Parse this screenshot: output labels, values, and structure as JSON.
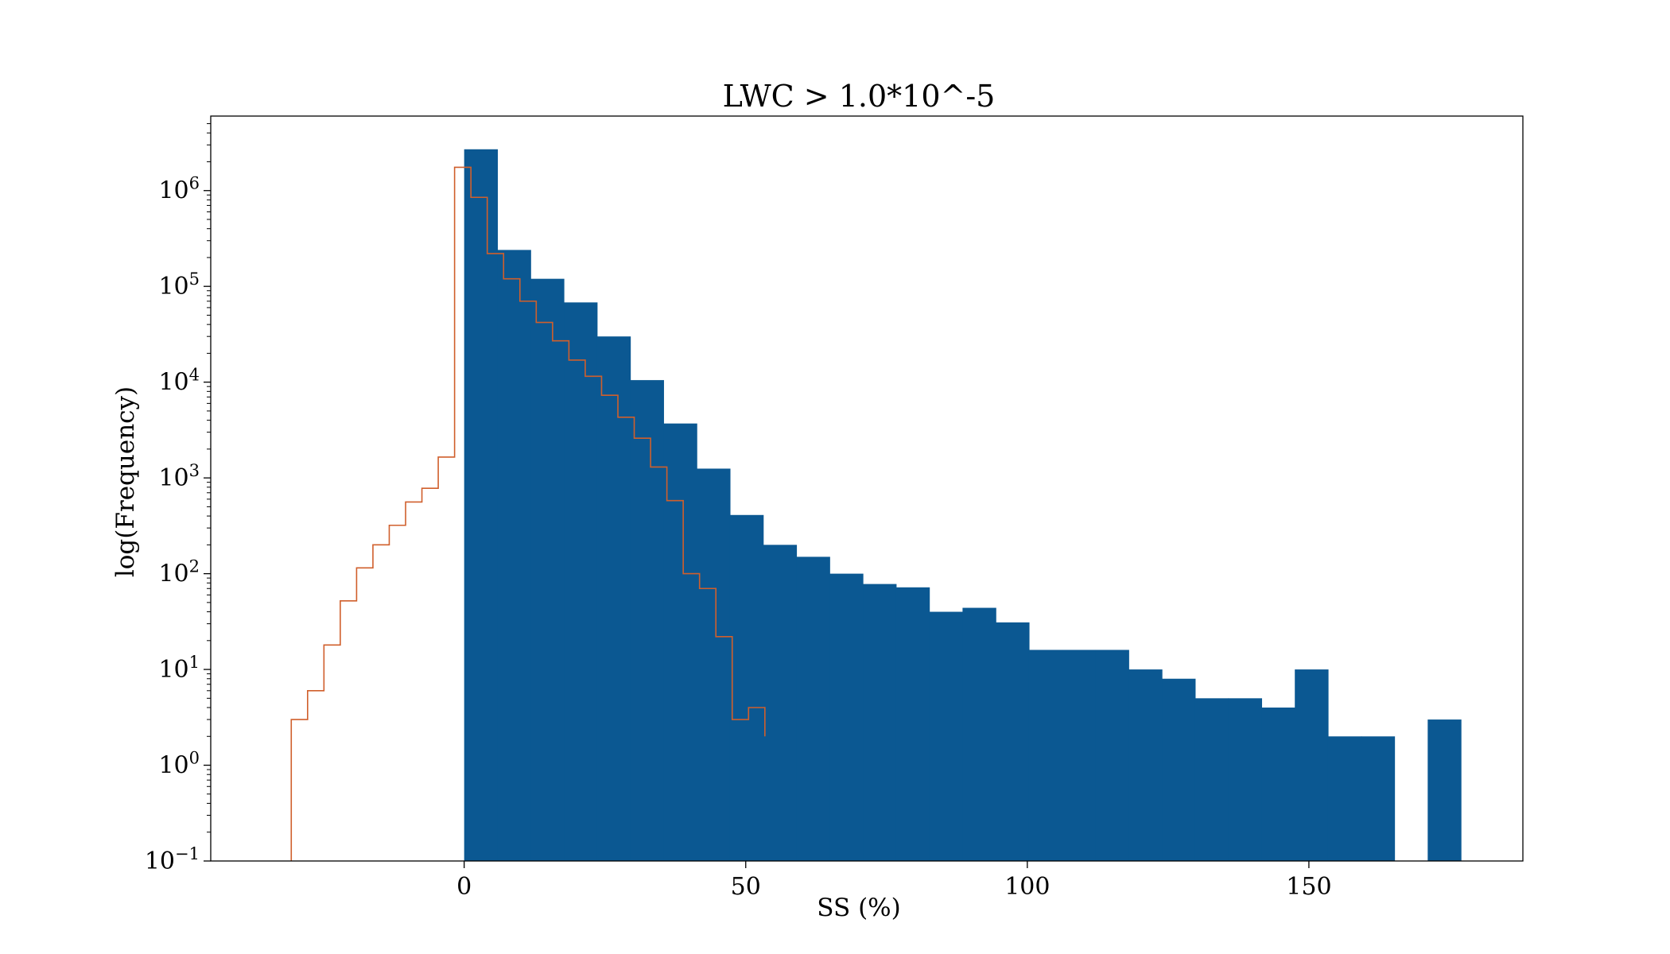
{
  "chart_data": {
    "type": "histogram",
    "title": "LWC > 1.0*10^-5",
    "xlabel": "SS (%)",
    "ylabel": "log(Frequency)",
    "xlim": [
      -45,
      188
    ],
    "ylim": [
      0.1,
      6000000
    ],
    "yscale": "log",
    "grid": false,
    "x_ticks": [
      {
        "value": 0,
        "label": "0"
      },
      {
        "value": 50,
        "label": "50"
      },
      {
        "value": 100,
        "label": "100"
      },
      {
        "value": 150,
        "label": "150"
      }
    ],
    "y_ticks": [
      {
        "value": 0.1,
        "base": "10",
        "exp": "−1"
      },
      {
        "value": 1,
        "base": "10",
        "exp": "0"
      },
      {
        "value": 10,
        "base": "10",
        "exp": "1"
      },
      {
        "value": 100,
        "base": "10",
        "exp": "2"
      },
      {
        "value": 1000,
        "base": "10",
        "exp": "3"
      },
      {
        "value": 10000,
        "base": "10",
        "exp": "4"
      },
      {
        "value": 100000,
        "base": "10",
        "exp": "5"
      },
      {
        "value": 1000000,
        "base": "10",
        "exp": "6"
      }
    ],
    "series": [
      {
        "style": "filled-bars",
        "color": "#0b5892",
        "bin_edges": [
          0,
          5.9,
          11.8,
          17.7,
          23.6,
          29.5,
          35.4,
          41.3,
          47.2,
          53.1,
          59.0,
          64.9,
          70.8,
          76.7,
          82.6,
          88.5,
          94.4,
          100.3,
          106.2,
          112.1,
          118.0,
          123.9,
          129.8,
          135.7,
          141.6,
          147.5,
          153.4,
          159.3,
          165.2,
          171.1,
          177.0
        ],
        "values": [
          2700000,
          240000,
          120000,
          68000,
          30000,
          10500,
          3700,
          1250,
          410,
          200,
          150,
          100,
          78,
          72,
          40,
          44,
          31,
          16,
          16,
          16,
          10,
          8,
          5,
          5,
          4,
          10,
          2,
          2,
          0,
          3
        ]
      },
      {
        "style": "step",
        "color": "#d05f2c",
        "bin_edges": [
          -30.7,
          -27.8,
          -24.9,
          -22.0,
          -19.1,
          -16.2,
          -13.3,
          -10.4,
          -7.5,
          -4.6,
          -1.7,
          1.2,
          4.1,
          7.0,
          9.9,
          12.8,
          15.7,
          18.6,
          21.5,
          24.4,
          27.3,
          30.2,
          33.1,
          36.0,
          38.9,
          41.8,
          44.7,
          47.6,
          50.5,
          53.4
        ],
        "values": [
          3,
          6,
          18,
          52,
          115,
          200,
          320,
          560,
          780,
          1650,
          1750000,
          850000,
          220000,
          120000,
          70000,
          42000,
          27000,
          17000,
          11500,
          7300,
          4300,
          2600,
          1300,
          580,
          100,
          70,
          22,
          3,
          4,
          2
        ]
      }
    ]
  }
}
